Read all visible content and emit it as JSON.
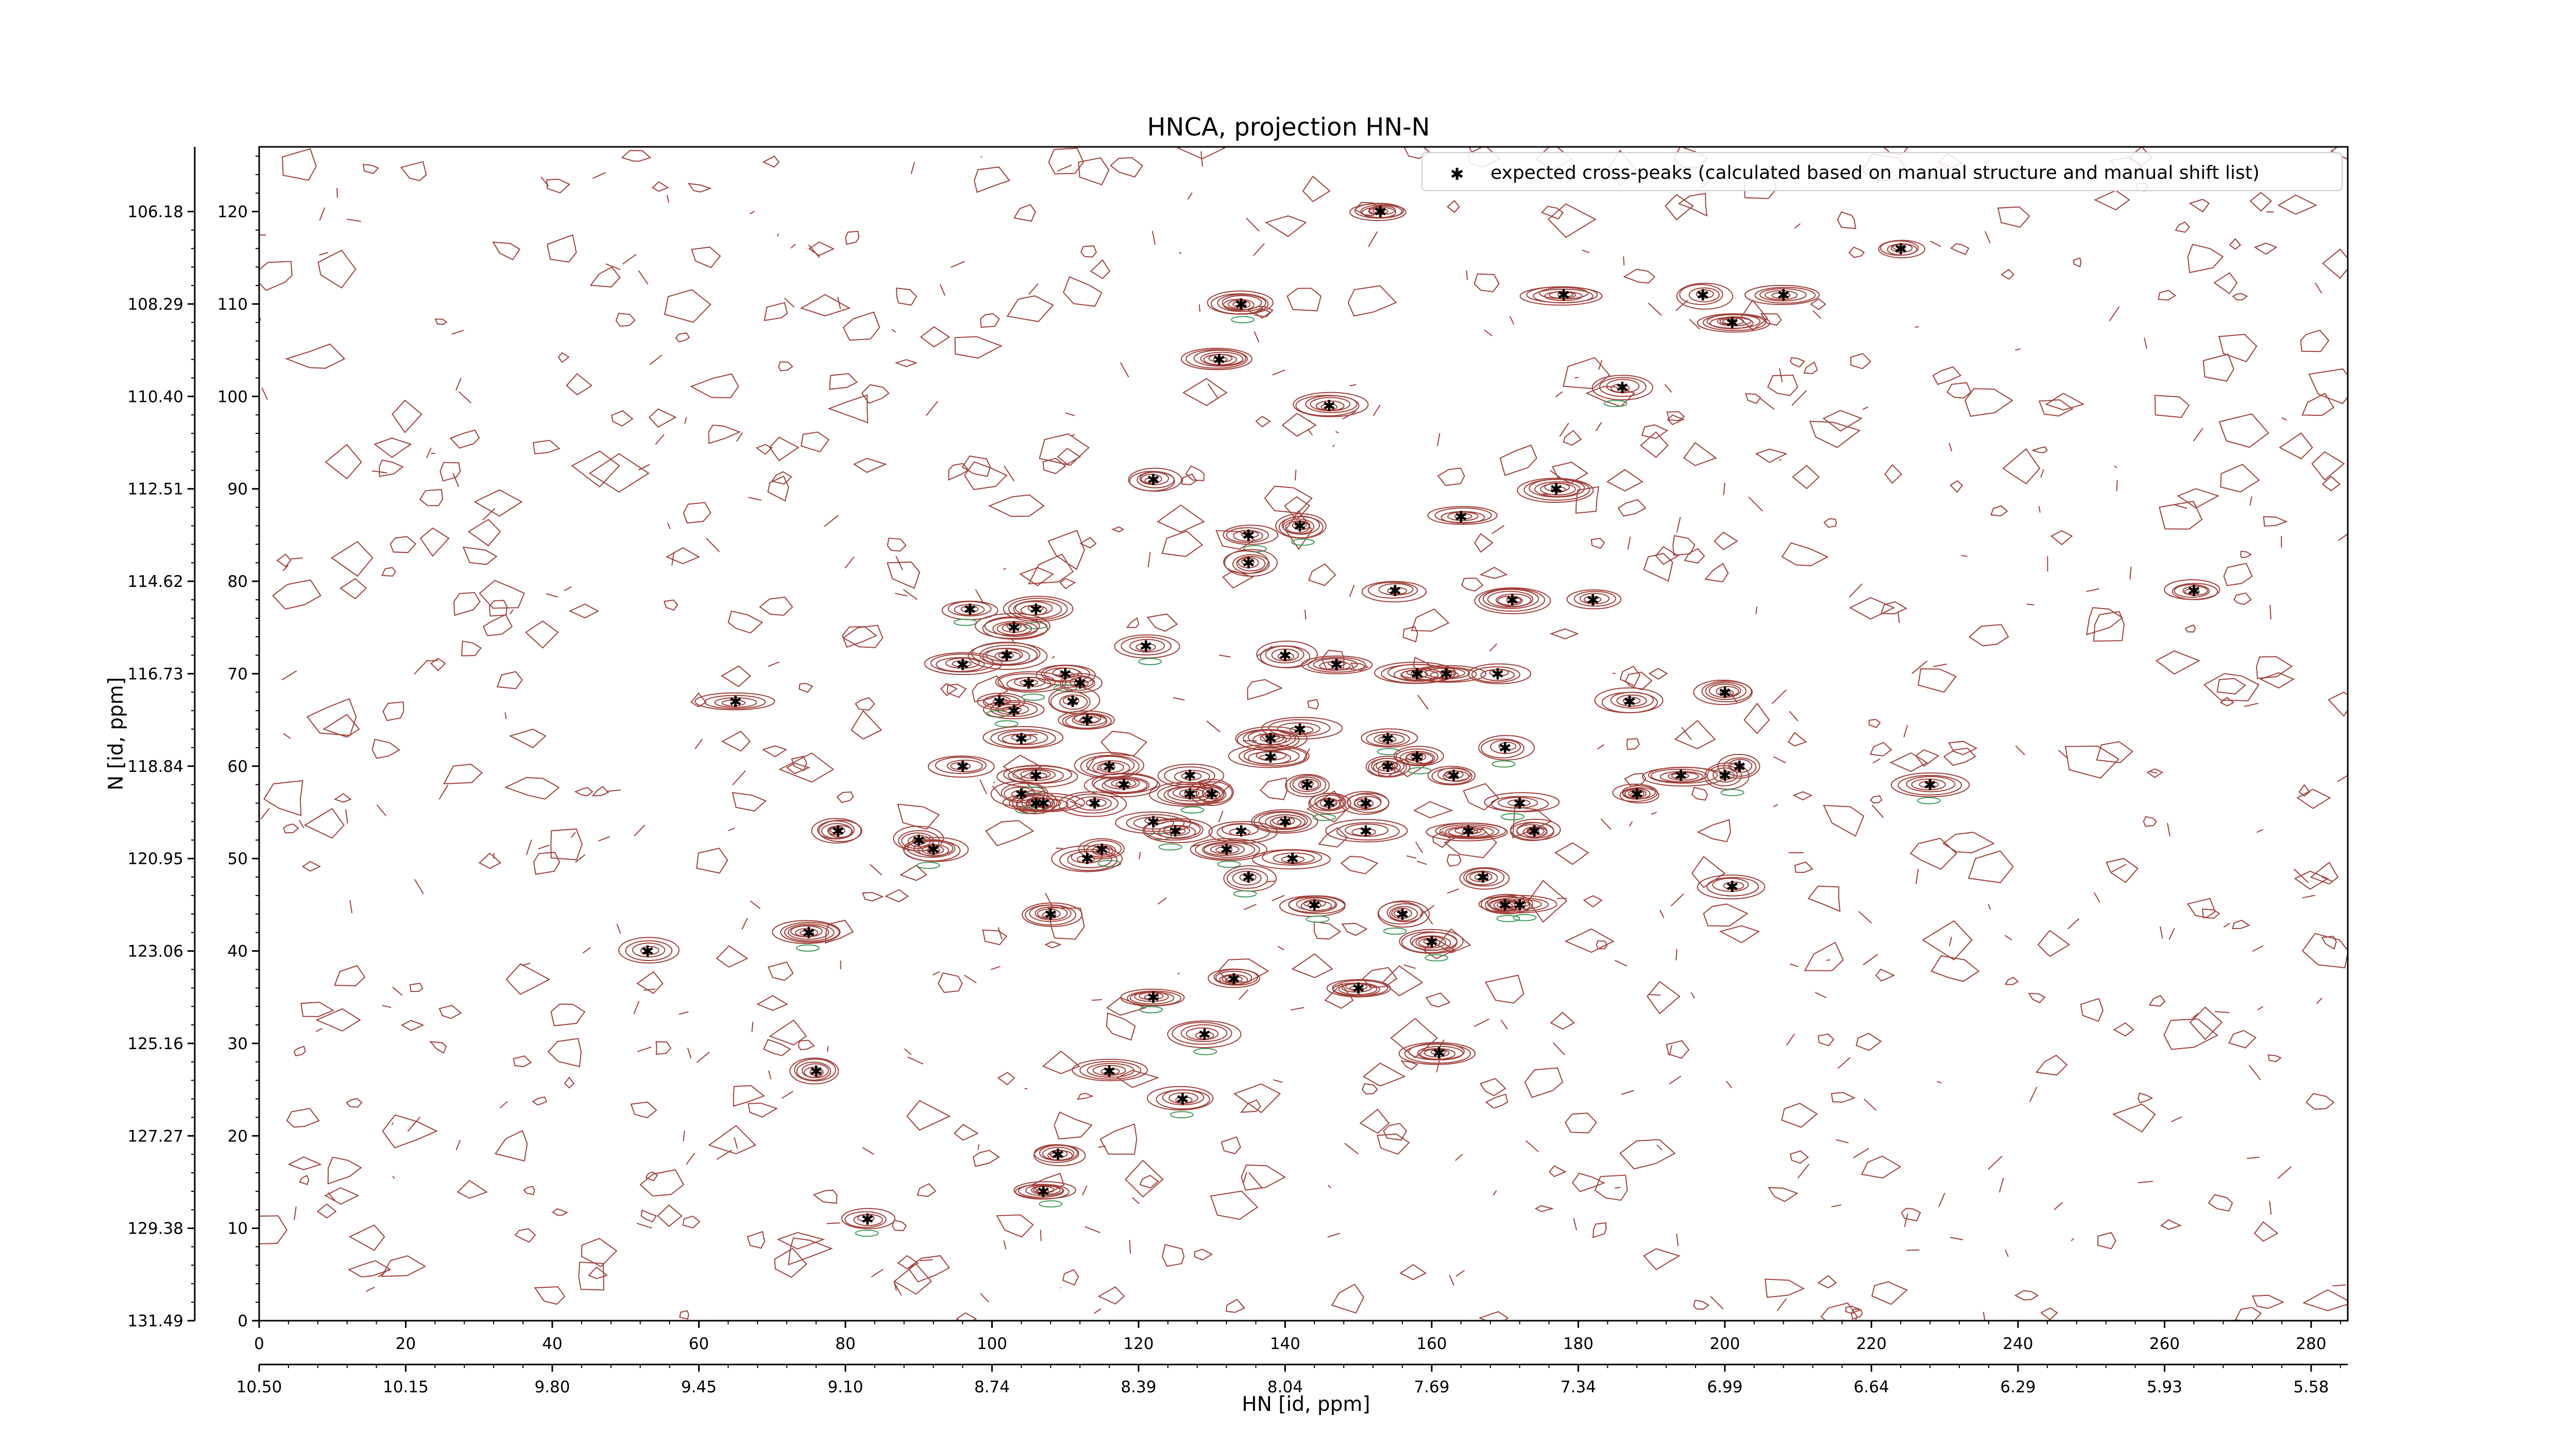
{
  "chart_data": {
    "type": "scatter",
    "title": "HNCA, projection HN-N",
    "xlabel": "HN [id, ppm]",
    "ylabel": "N [id, ppm]",
    "x_index_range": [
      0,
      285
    ],
    "y_index_range": [
      0,
      127
    ],
    "x_index_ticks": [
      "0",
      "20",
      "40",
      "60",
      "80",
      "100",
      "120",
      "140",
      "160",
      "180",
      "200",
      "220",
      "240",
      "260",
      "280"
    ],
    "y_index_ticks": [
      "0",
      "10",
      "20",
      "30",
      "40",
      "50",
      "60",
      "70",
      "80",
      "90",
      "100",
      "110",
      "120"
    ],
    "x_ppm_ticks": [
      "10.50",
      "10.15",
      "9.80",
      "9.45",
      "9.10",
      "8.74",
      "8.39",
      "8.04",
      "7.69",
      "7.34",
      "6.99",
      "6.64",
      "6.29",
      "5.93",
      "5.58"
    ],
    "y_ppm_ticks": [
      "131.49",
      "129.38",
      "127.27",
      "125.16",
      "123.06",
      "120.95",
      "118.84",
      "116.73",
      "114.62",
      "112.51",
      "110.40",
      "108.29",
      "106.18"
    ],
    "legend": {
      "label": "expected cross-peaks (calculated based on manual structure and manual shift list)",
      "position": "top-right"
    },
    "colors": {
      "peak_marker": "#0000ee",
      "contour_positive": "#a0403a",
      "contour_negative": "#3e9a5a"
    },
    "series": [
      {
        "name": "expected cross-peaks (calculated based on manual structure and manual shift list)",
        "points": [
          [
            153,
            120
          ],
          [
            224,
            116
          ],
          [
            178,
            111
          ],
          [
            197,
            111
          ],
          [
            208,
            111
          ],
          [
            201,
            108
          ],
          [
            134,
            110
          ],
          [
            131,
            104
          ],
          [
            186,
            101
          ],
          [
            146,
            99
          ],
          [
            122,
            91
          ],
          [
            177,
            90
          ],
          [
            164,
            87
          ],
          [
            142,
            86
          ],
          [
            135,
            85
          ],
          [
            135,
            82
          ],
          [
            155,
            79
          ],
          [
            171,
            78
          ],
          [
            182,
            78
          ],
          [
            264,
            79
          ],
          [
            97,
            77
          ],
          [
            106,
            77
          ],
          [
            103,
            75
          ],
          [
            96,
            71
          ],
          [
            102,
            72
          ],
          [
            121,
            73
          ],
          [
            140,
            72
          ],
          [
            147,
            71
          ],
          [
            158,
            70
          ],
          [
            162,
            70
          ],
          [
            169,
            70
          ],
          [
            65,
            67
          ],
          [
            101,
            67
          ],
          [
            105,
            69
          ],
          [
            110,
            70
          ],
          [
            112,
            69
          ],
          [
            103,
            66
          ],
          [
            111,
            67
          ],
          [
            113,
            65
          ],
          [
            187,
            67
          ],
          [
            200,
            68
          ],
          [
            138,
            63
          ],
          [
            142,
            64
          ],
          [
            154,
            63
          ],
          [
            158,
            61
          ],
          [
            154,
            60
          ],
          [
            104,
            63
          ],
          [
            170,
            62
          ],
          [
            96,
            60
          ],
          [
            106,
            59
          ],
          [
            116,
            60
          ],
          [
            127,
            59
          ],
          [
            138,
            61
          ],
          [
            143,
            58
          ],
          [
            163,
            59
          ],
          [
            188,
            57
          ],
          [
            194,
            59
          ],
          [
            200,
            59
          ],
          [
            202,
            60
          ],
          [
            228,
            58
          ],
          [
            104,
            57
          ],
          [
            106,
            56
          ],
          [
            107,
            56
          ],
          [
            114,
            56
          ],
          [
            118,
            58
          ],
          [
            127,
            57
          ],
          [
            130,
            57
          ],
          [
            146,
            56
          ],
          [
            151,
            56
          ],
          [
            172,
            56
          ],
          [
            122,
            54
          ],
          [
            125,
            53
          ],
          [
            134,
            53
          ],
          [
            140,
            54
          ],
          [
            151,
            53
          ],
          [
            165,
            53
          ],
          [
            174,
            53
          ],
          [
            79,
            53
          ],
          [
            90,
            52
          ],
          [
            92,
            51
          ],
          [
            115,
            51
          ],
          [
            132,
            51
          ],
          [
            141,
            50
          ],
          [
            113,
            50
          ],
          [
            135,
            48
          ],
          [
            167,
            48
          ],
          [
            201,
            47
          ],
          [
            144,
            45
          ],
          [
            170,
            45
          ],
          [
            172,
            45
          ],
          [
            108,
            44
          ],
          [
            156,
            44
          ],
          [
            160,
            41
          ],
          [
            75,
            42
          ],
          [
            53,
            40
          ],
          [
            133,
            37
          ],
          [
            122,
            35
          ],
          [
            150,
            36
          ],
          [
            129,
            31
          ],
          [
            161,
            29
          ],
          [
            116,
            27
          ],
          [
            126,
            24
          ],
          [
            76,
            27
          ],
          [
            109,
            18
          ],
          [
            107,
            14
          ],
          [
            83,
            11
          ]
        ]
      }
    ]
  }
}
